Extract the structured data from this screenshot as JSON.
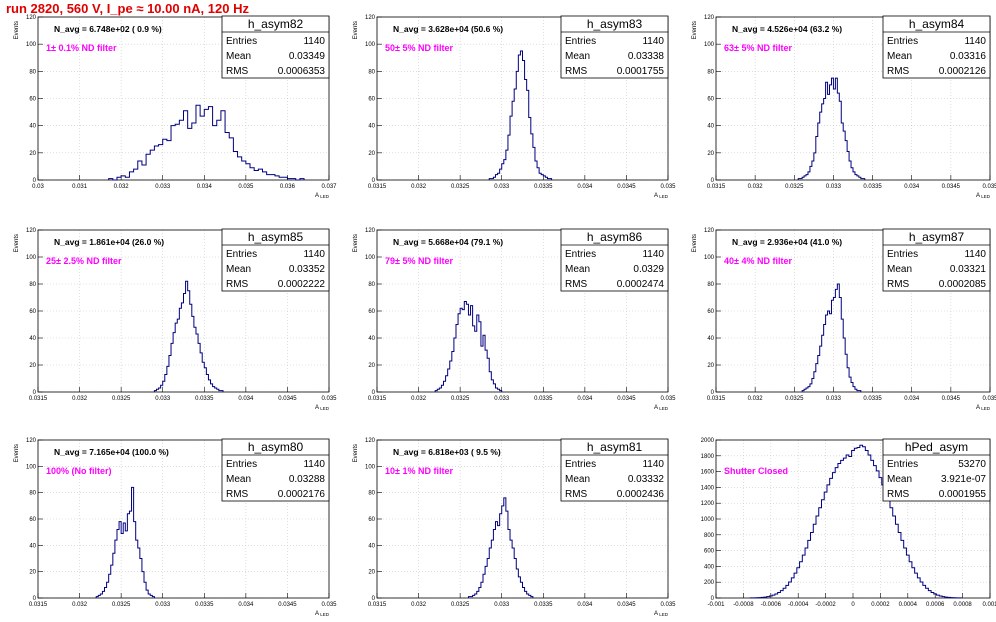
{
  "run_title": "run 2820,   560 V, I_pe ≈ 10.00 nA, 120 Hz",
  "colors": {
    "histogram": "#000080",
    "title": "#e00000",
    "annotation": "#ff00ff",
    "grid": "#c8c8c8"
  },
  "chart_data": [
    {
      "type": "histogram",
      "name": "h_asym82",
      "stats": {
        "entries": "1140",
        "mean": "0.03349",
        "rms": "0.0006353"
      },
      "n_avg_text": "N_avg = 6.748e+02 ( 0.9 %)",
      "filter_text": "1± 0.1% ND filter",
      "ylabel": "Events",
      "xlabel": "A",
      "ylim": [
        0,
        120
      ],
      "xlim": [
        0.03,
        0.037
      ],
      "xticks": [
        "0.03",
        "0.031",
        "0.032",
        "0.033",
        "0.034",
        "0.035",
        "0.036",
        "0.037"
      ],
      "yticks": [
        "0",
        "20",
        "40",
        "60",
        "80",
        "100",
        "120"
      ],
      "x_start": 0.0317,
      "bin_width": 0.0001,
      "values": [
        1,
        0,
        2,
        3,
        2,
        6,
        8,
        14,
        11,
        19,
        22,
        25,
        26,
        30,
        29,
        40,
        41,
        44,
        51,
        38,
        42,
        55,
        47,
        52,
        54,
        40,
        44,
        51,
        35,
        31,
        21,
        17,
        14,
        12,
        9,
        7,
        8,
        6,
        4,
        4,
        3,
        2,
        2,
        1,
        1,
        0,
        1
      ]
    },
    {
      "type": "histogram",
      "name": "h_asym83",
      "stats": {
        "entries": "1140",
        "mean": "0.03338",
        "rms": "0.0001755"
      },
      "n_avg_text": "N_avg = 3.628e+04 (50.6 %)",
      "filter_text": "50± 5% ND filter",
      "ylabel": "Events",
      "xlabel": "A",
      "ylim": [
        0,
        120
      ],
      "xlim": [
        0.0315,
        0.035
      ],
      "xticks": [
        "0.0315",
        "0.032",
        "0.0325",
        "0.033",
        "0.0335",
        "0.034",
        "0.0345",
        "0.035"
      ],
      "yticks": [
        "0",
        "20",
        "40",
        "60",
        "80",
        "100",
        "120"
      ],
      "x_start": 0.03285,
      "bin_width": 2.5e-05,
      "values": [
        1,
        1,
        2,
        4,
        5,
        8,
        12,
        15,
        22,
        33,
        47,
        58,
        67,
        80,
        92,
        95,
        88,
        74,
        66,
        46,
        34,
        24,
        14,
        9,
        5,
        4,
        3,
        2,
        1,
        1
      ]
    },
    {
      "type": "histogram",
      "name": "h_asym84",
      "stats": {
        "entries": "1140",
        "mean": "0.03316",
        "rms": "0.0002126"
      },
      "n_avg_text": "N_avg = 4.526e+04 (63.2 %)",
      "filter_text": "63± 5% ND filter",
      "ylabel": "Events",
      "xlabel": "A",
      "ylim": [
        0,
        120
      ],
      "xlim": [
        0.0315,
        0.035
      ],
      "xticks": [
        "0.0315",
        "0.032",
        "0.0325",
        "0.033",
        "0.0335",
        "0.034",
        "0.0345",
        "0.035"
      ],
      "yticks": [
        "0",
        "20",
        "40",
        "60",
        "80",
        "100",
        "120"
      ],
      "x_start": 0.03255,
      "bin_width": 2.5e-05,
      "values": [
        1,
        1,
        2,
        3,
        4,
        6,
        10,
        14,
        20,
        32,
        42,
        50,
        56,
        60,
        72,
        63,
        70,
        75,
        67,
        75,
        64,
        58,
        42,
        36,
        29,
        21,
        14,
        9,
        6,
        4,
        3,
        2,
        1,
        1
      ]
    },
    {
      "type": "histogram",
      "name": "h_asym85",
      "stats": {
        "entries": "1140",
        "mean": "0.03352",
        "rms": "0.0002222"
      },
      "n_avg_text": "N_avg = 1.861e+04 (26.0 %)",
      "filter_text": "25± 2.5% ND filter",
      "ylabel": "Events",
      "xlabel": "A",
      "ylim": [
        0,
        120
      ],
      "xlim": [
        0.0315,
        0.035
      ],
      "xticks": [
        "0.0315",
        "0.032",
        "0.0325",
        "0.033",
        "0.0335",
        "0.034",
        "0.0345",
        "0.035"
      ],
      "yticks": [
        "0",
        "20",
        "40",
        "60",
        "80",
        "100",
        "120"
      ],
      "x_start": 0.0329,
      "bin_width": 2.5e-05,
      "values": [
        1,
        2,
        3,
        5,
        8,
        13,
        19,
        27,
        36,
        44,
        51,
        54,
        62,
        66,
        73,
        82,
        75,
        65,
        56,
        48,
        43,
        36,
        29,
        22,
        18,
        13,
        9,
        6,
        4,
        3,
        2,
        1,
        1
      ]
    },
    {
      "type": "histogram",
      "name": "h_asym86",
      "stats": {
        "entries": "1140",
        "mean": "0.0329",
        "rms": "0.0002474"
      },
      "n_avg_text": "N_avg = 5.668e+04 (79.1 %)",
      "filter_text": "79± 5% ND filter",
      "ylabel": "Events",
      "xlabel": "A",
      "ylim": [
        0,
        120
      ],
      "xlim": [
        0.0315,
        0.035
      ],
      "xticks": [
        "0.0315",
        "0.032",
        "0.0325",
        "0.033",
        "0.0335",
        "0.034",
        "0.0345",
        "0.035"
      ],
      "yticks": [
        "0",
        "20",
        "40",
        "60",
        "80",
        "100",
        "120"
      ],
      "x_start": 0.0322,
      "bin_width": 2.5e-05,
      "values": [
        1,
        2,
        3,
        5,
        8,
        12,
        17,
        23,
        30,
        40,
        50,
        58,
        62,
        61,
        67,
        65,
        57,
        64,
        49,
        45,
        57,
        52,
        34,
        42,
        31,
        25,
        15,
        9,
        6,
        3,
        2,
        1
      ]
    },
    {
      "type": "histogram",
      "name": "h_asym87",
      "stats": {
        "entries": "1140",
        "mean": "0.03321",
        "rms": "0.0002085"
      },
      "n_avg_text": "N_avg = 2.936e+04 (41.0 %)",
      "filter_text": "40± 4% ND filter",
      "ylabel": "Events",
      "xlabel": "A",
      "ylim": [
        0,
        120
      ],
      "xlim": [
        0.0315,
        0.035
      ],
      "xticks": [
        "0.0315",
        "0.032",
        "0.0325",
        "0.033",
        "0.0335",
        "0.034",
        "0.0345",
        "0.035"
      ],
      "yticks": [
        "0",
        "20",
        "40",
        "60",
        "80",
        "100",
        "120"
      ],
      "x_start": 0.0326,
      "bin_width": 2.5e-05,
      "values": [
        1,
        2,
        3,
        4,
        6,
        10,
        15,
        21,
        27,
        34,
        42,
        50,
        57,
        60,
        58,
        68,
        70,
        76,
        80,
        70,
        54,
        40,
        28,
        18,
        11,
        7,
        4,
        2,
        1,
        1
      ]
    },
    {
      "type": "histogram",
      "name": "h_asym80",
      "stats": {
        "entries": "1140",
        "mean": "0.03288",
        "rms": "0.0002176"
      },
      "n_avg_text": "N_avg = 7.165e+04 (100.0 %)",
      "filter_text": "100% (No filter)",
      "ylabel": "Events",
      "xlabel": "A",
      "ylim": [
        0,
        120
      ],
      "xlim": [
        0.0315,
        0.035
      ],
      "xticks": [
        "0.0315",
        "0.032",
        "0.0325",
        "0.033",
        "0.0335",
        "0.034",
        "0.0345",
        "0.035"
      ],
      "yticks": [
        "0",
        "20",
        "40",
        "60",
        "80",
        "100",
        "120"
      ],
      "x_start": 0.0322,
      "bin_width": 2.5e-05,
      "values": [
        1,
        2,
        3,
        5,
        8,
        12,
        18,
        25,
        34,
        44,
        52,
        58,
        49,
        57,
        51,
        64,
        66,
        84,
        58,
        44,
        38,
        30,
        20,
        12,
        6,
        3,
        2,
        1
      ]
    },
    {
      "type": "histogram",
      "name": "h_asym81",
      "stats": {
        "entries": "1140",
        "mean": "0.03332",
        "rms": "0.0002436"
      },
      "n_avg_text": "N_avg = 6.818e+03 ( 9.5 %)",
      "filter_text": "10± 1% ND filter",
      "ylabel": "Events",
      "xlabel": "A",
      "ylim": [
        0,
        120
      ],
      "xlim": [
        0.0315,
        0.035
      ],
      "xticks": [
        "0.0315",
        "0.032",
        "0.0325",
        "0.033",
        "0.0335",
        "0.034",
        "0.0345",
        "0.035"
      ],
      "yticks": [
        "0",
        "20",
        "40",
        "60",
        "80",
        "100",
        "120"
      ],
      "x_start": 0.0326,
      "bin_width": 2.5e-05,
      "values": [
        1,
        1,
        2,
        3,
        5,
        8,
        12,
        18,
        24,
        30,
        38,
        44,
        52,
        58,
        55,
        64,
        70,
        76,
        66,
        52,
        44,
        38,
        30,
        22,
        16,
        12,
        8,
        5,
        3,
        2,
        1
      ]
    },
    {
      "type": "histogram",
      "name": "hPed_asym",
      "stats": {
        "entries": "53270",
        "mean": "3.921e-07",
        "rms": "0.0001955"
      },
      "n_avg_text": "",
      "filter_text": "Shutter Closed",
      "ylabel": "",
      "xlabel": "",
      "ylim": [
        0,
        2100
      ],
      "xlim": [
        -0.001,
        0.001
      ],
      "xticks": [
        "-0.001",
        "-0.0008",
        "-0.0006",
        "-0.0004",
        "-0.0002",
        "0",
        "0.0002",
        "0.0004",
        "0.0006",
        "0.0008",
        "0.001"
      ],
      "yticks": [
        "0",
        "200",
        "400",
        "600",
        "800",
        "1000",
        "1200",
        "1400",
        "1600",
        "1800",
        "2000"
      ],
      "x_start": -0.00075,
      "bin_width": 2e-05,
      "values": [
        1,
        2,
        3,
        5,
        8,
        12,
        18,
        27,
        38,
        53,
        73,
        98,
        129,
        167,
        213,
        267,
        330,
        402,
        482,
        570,
        665,
        766,
        871,
        980,
        1090,
        1199,
        1306,
        1408,
        1503,
        1590,
        1667,
        1733,
        1788,
        1830,
        1859,
        1900,
        1880,
        1960,
        1990,
        2000,
        2030,
        2010,
        1960,
        1900,
        1830,
        1760,
        1690,
        1600,
        1503,
        1408,
        1306,
        1199,
        1090,
        980,
        871,
        766,
        665,
        570,
        482,
        402,
        330,
        267,
        213,
        167,
        129,
        98,
        73,
        53,
        38,
        27,
        18,
        12,
        8,
        5,
        3,
        2,
        1
      ]
    }
  ]
}
